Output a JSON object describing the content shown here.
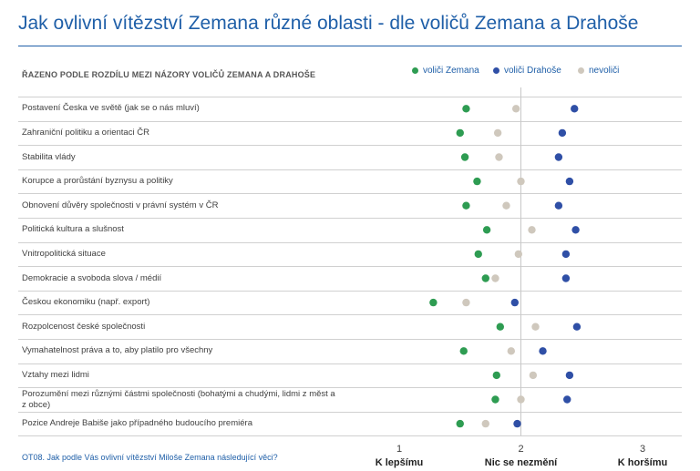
{
  "chart_data": {
    "type": "scatter",
    "title": "Jak ovlivní vítězství Zemana různé oblasti - dle voličů Zemana a Drahoše",
    "subtitle": "ŘAZENO PODLE ROZDÍLU MEZI NÁZORY VOLIČŮ ZEMANA A DRAHOŠE",
    "question": "OT08. Jak podle Vás ovlivní vítězství Miloše Zemana následující věci?",
    "xlim": [
      1,
      3
    ],
    "ticks": [
      {
        "value": 1,
        "num": "1",
        "label": "K lepšímu"
      },
      {
        "value": 2,
        "num": "2",
        "label": "Nic se nezmění"
      },
      {
        "value": 3,
        "num": "3",
        "label": "K horšímu"
      }
    ],
    "colors": {
      "zeman": "#2e9c52",
      "drahos": "#2f4fa6",
      "nevolici": "#cfc8bd"
    },
    "series": [
      {
        "key": "zeman",
        "name": "voliči Zemana",
        "color": "#2e9c52"
      },
      {
        "key": "drahos",
        "name": "voliči Drahoše",
        "color": "#2f4fa6"
      },
      {
        "key": "nevolici",
        "name": "nevoliči",
        "color": "#cfc8bd"
      }
    ],
    "categories": [
      {
        "label": "Postavení Česka ve světě (jak se o nás mluví)",
        "zeman": 1.55,
        "nevolici": 1.96,
        "drahos": 2.44
      },
      {
        "label": "Zahraniční politiku a orientaci ČR",
        "zeman": 1.5,
        "nevolici": 1.81,
        "drahos": 2.34
      },
      {
        "label": "Stabilita vlády",
        "zeman": 1.54,
        "nevolici": 1.82,
        "drahos": 2.31
      },
      {
        "label": "Korupce a prorůstání byznysu a politiky",
        "zeman": 1.64,
        "nevolici": 2.0,
        "drahos": 2.4
      },
      {
        "label": "Obnovení důvěry společnosti v právní systém v ČR",
        "zeman": 1.55,
        "nevolici": 1.88,
        "drahos": 2.31
      },
      {
        "label": "Politická kultura a slušnost",
        "zeman": 1.72,
        "nevolici": 2.09,
        "drahos": 2.45
      },
      {
        "label": "Vnitropolitická situace",
        "zeman": 1.65,
        "nevolici": 1.98,
        "drahos": 2.37
      },
      {
        "label": "Demokracie a svoboda slova / médií",
        "zeman": 1.71,
        "nevolici": 1.79,
        "drahos": 2.37
      },
      {
        "label": "Českou ekonomiku (např. export)",
        "zeman": 1.28,
        "nevolici": 1.55,
        "drahos": 1.95
      },
      {
        "label": "Rozpolcenost české společnosti",
        "zeman": 1.83,
        "nevolici": 2.12,
        "drahos": 2.46
      },
      {
        "label": "Vymahatelnost práva a to, aby platilo pro všechny",
        "zeman": 1.53,
        "nevolici": 1.92,
        "drahos": 2.18
      },
      {
        "label": "Vztahy mezi lidmi",
        "zeman": 1.8,
        "nevolici": 2.1,
        "drahos": 2.4
      },
      {
        "label": "Porozumění mezi různými částmi společnosti (bohatými a chudými, lidmi z měst a z obce)",
        "zeman": 1.79,
        "nevolici": 2.0,
        "drahos": 2.38
      },
      {
        "label": "Pozice Andreje Babiše jako případného budoucího premiéra",
        "zeman": 1.5,
        "nevolici": 1.71,
        "drahos": 1.97
      }
    ]
  }
}
